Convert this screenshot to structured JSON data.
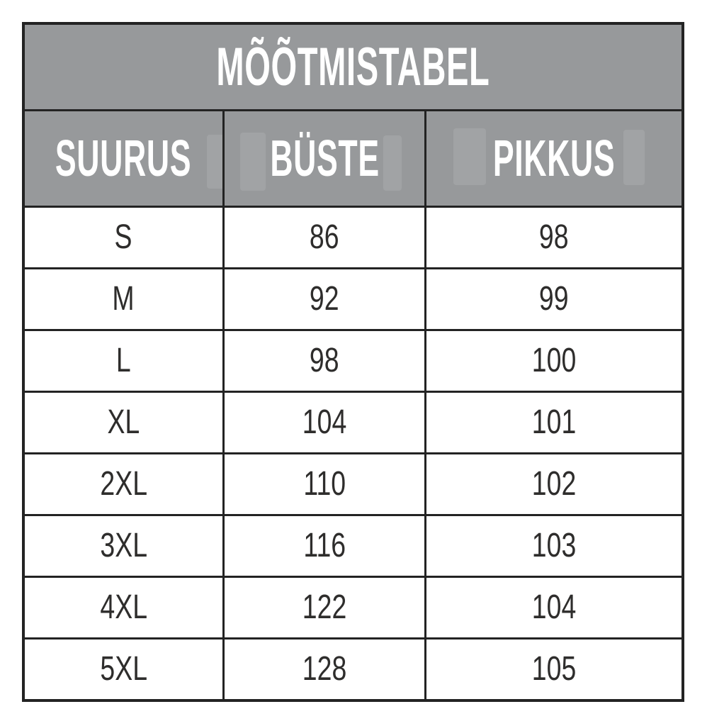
{
  "chart_data": {
    "type": "table",
    "title": "MÕÕTMISTABEL",
    "columns": [
      "SUURUS",
      "BÜSTE",
      "PIKKUS"
    ],
    "rows": [
      [
        "S",
        86,
        98
      ],
      [
        "M",
        92,
        99
      ],
      [
        "L",
        98,
        100
      ],
      [
        "XL",
        104,
        101
      ],
      [
        "2XL",
        110,
        102
      ],
      [
        "3XL",
        116,
        103
      ],
      [
        "4XL",
        122,
        104
      ],
      [
        "5XL",
        128,
        105
      ]
    ]
  },
  "table": {
    "title": "MÕÕTMISTABEL",
    "columns": [
      "SUURUS",
      "BÜSTE",
      "PIKKUS"
    ],
    "rows": [
      {
        "size": "S",
        "buste": "86",
        "pikkus": "98"
      },
      {
        "size": "M",
        "buste": "92",
        "pikkus": "99"
      },
      {
        "size": "L",
        "buste": "98",
        "pikkus": "100"
      },
      {
        "size": "XL",
        "buste": "104",
        "pikkus": "101"
      },
      {
        "size": "2XL",
        "buste": "110",
        "pikkus": "102"
      },
      {
        "size": "3XL",
        "buste": "116",
        "pikkus": "103"
      },
      {
        "size": "4XL",
        "buste": "122",
        "pikkus": "104"
      },
      {
        "size": "5XL",
        "buste": "128",
        "pikkus": "105"
      }
    ]
  },
  "colors": {
    "header_background": "#97999B",
    "border": "#232323",
    "header_text": "#FFFFFF",
    "data_text": "#2E2D2C",
    "page_background": "#FFFFFF"
  }
}
